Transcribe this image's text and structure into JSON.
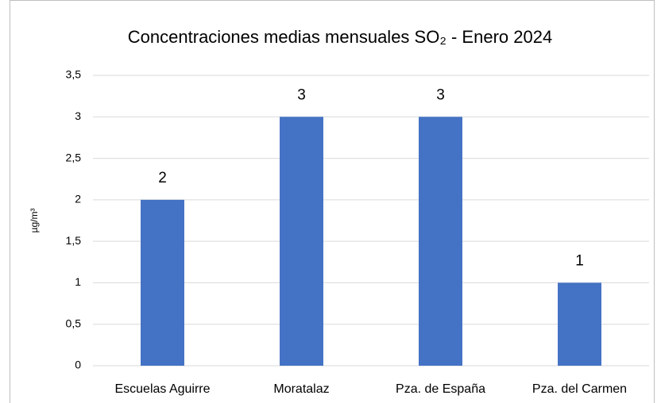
{
  "chart_data": {
    "type": "bar",
    "title": "Concentraciones medias mensuales SO₂ - Enero 2024",
    "y_label": "µg/m³",
    "categories": [
      "Escuelas Aguirre",
      "Moratalaz",
      "Pza. de España",
      "Pza. del Carmen"
    ],
    "values": [
      2,
      3,
      3,
      1
    ],
    "color": "#4472c4",
    "ylim": [
      0,
      3.5
    ],
    "yticks": [
      0,
      {
        "value": 0.5,
        "label": "0,5"
      },
      1,
      {
        "value": 1.5,
        "label": "1,5"
      },
      2,
      {
        "value": 2.5,
        "label": "2,5"
      },
      3,
      {
        "value": 3.5,
        "label": "3,5"
      }
    ],
    "grid": true,
    "data_labels": true
  }
}
